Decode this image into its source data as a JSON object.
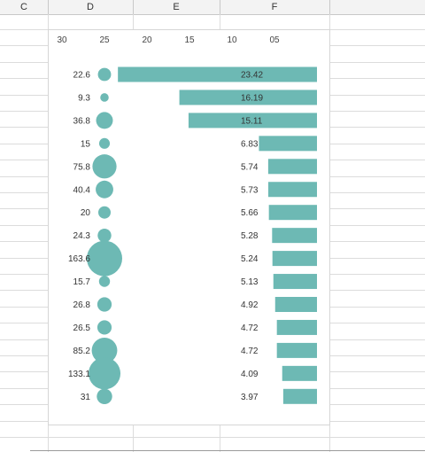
{
  "columns": [
    {
      "letter": "C"
    },
    {
      "letter": "D"
    },
    {
      "letter": "E"
    },
    {
      "letter": "F"
    }
  ],
  "chart_data": {
    "type": "bar",
    "orientation": "horizontal",
    "x_axis_reversed": true,
    "x_ticks": [
      "30",
      "25",
      "20",
      "15",
      "10",
      "05"
    ],
    "bar_values": [
      23.42,
      16.19,
      15.11,
      6.83,
      5.74,
      5.73,
      5.66,
      5.28,
      5.24,
      5.13,
      4.92,
      4.72,
      4.72,
      4.09,
      3.97
    ],
    "bar_labels": [
      "23.42",
      "16.19",
      "15.11",
      "6.83",
      "5.74",
      "5.73",
      "5.66",
      "5.28",
      "5.24",
      "5.13",
      "4.92",
      "4.72",
      "4.72",
      "4.09",
      "3.97"
    ],
    "bubble_values": [
      22.6,
      9.3,
      36.8,
      15,
      75.8,
      40.4,
      20,
      24.3,
      163.6,
      15.7,
      26.8,
      26.5,
      85.2,
      133.1,
      31
    ],
    "bubble_labels": [
      "22.6",
      "9.3",
      "36.8",
      "15",
      "75.8",
      "40.4",
      "20",
      "24.3",
      "163.6",
      "15.7",
      "26.8",
      "26.5",
      "85.2",
      "133.1",
      "31"
    ],
    "bubble_x": 25,
    "xlim": [
      0,
      30
    ],
    "color": "#6db9b4",
    "grid": false,
    "legend": "none"
  }
}
